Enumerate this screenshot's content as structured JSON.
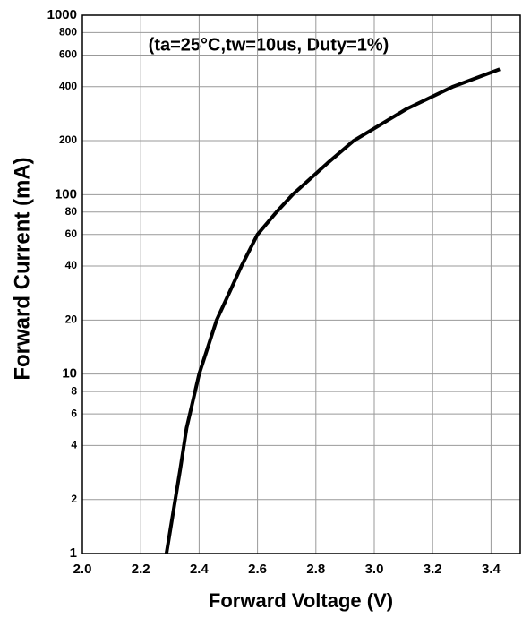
{
  "chart_data": {
    "type": "line",
    "annotation": "(ta=25°C,tw=10us, Duty=1%)",
    "xlabel": "Forward Voltage (V)",
    "ylabel": "Forward Current (mA)",
    "x": [
      2.288,
      2.336,
      2.357,
      2.4,
      2.46,
      2.51,
      2.545,
      2.6,
      2.665,
      2.72,
      2.84,
      2.93,
      3.11,
      3.27,
      3.43
    ],
    "series": [
      {
        "name": "Forward Current",
        "color": "#000000",
        "values": [
          1,
          3,
          5,
          10,
          20,
          30,
          40,
          60,
          80,
          100,
          150,
          200,
          300,
          400,
          500
        ]
      }
    ],
    "xlim": [
      2.0,
      3.5
    ],
    "xticks": [
      {
        "value": 2,
        "label": "2.0"
      },
      2.2,
      2.4,
      2.6,
      2.8,
      {
        "value": 3,
        "label": "3.0"
      },
      3.2,
      3.4
    ],
    "ylim": [
      1,
      1000
    ],
    "ylog": true,
    "yticks": [
      1,
      2,
      4,
      6,
      8,
      10,
      20,
      40,
      60,
      80,
      100,
      200,
      400,
      600,
      800,
      1000
    ],
    "grid": true
  }
}
